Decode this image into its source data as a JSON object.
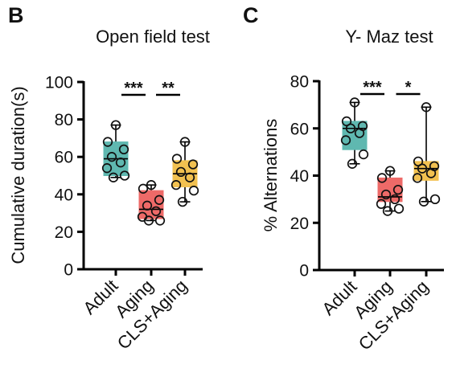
{
  "chart_data": [
    {
      "panel_label": "B",
      "type": "box",
      "title": "Open field test",
      "xlabel": "",
      "ylabel": "Cumulative duration(s)",
      "ylim": [
        0,
        100
      ],
      "yticks": [
        0,
        20,
        40,
        60,
        80,
        100
      ],
      "categories": [
        "Adult",
        "Aging",
        "CLS+Aging"
      ],
      "colors": [
        "#5fb8b0",
        "#ee6a68",
        "#f2c150"
      ],
      "boxes": [
        {
          "min": 49,
          "q1": 50,
          "median": 59,
          "q3": 68,
          "max": 77
        },
        {
          "min": 26,
          "q1": 27,
          "median": 32,
          "q3": 42,
          "max": 45
        },
        {
          "min": 36,
          "q1": 44,
          "median": 51,
          "q3": 58,
          "max": 68
        }
      ],
      "points": [
        [
          77,
          68,
          64,
          60,
          57,
          54,
          50,
          49
        ],
        [
          45,
          43,
          37,
          34,
          31,
          28,
          26,
          26
        ],
        [
          68,
          59,
          56,
          52,
          49,
          45,
          42,
          36
        ]
      ],
      "significance": [
        {
          "from": "Adult",
          "to": "Aging",
          "label": "***"
        },
        {
          "from": "Aging",
          "to": "CLS+Aging",
          "label": "**"
        }
      ]
    },
    {
      "panel_label": "C",
      "type": "box",
      "title": "Y- Maz test",
      "xlabel": "",
      "ylabel": "% Alternations",
      "ylim": [
        0,
        80
      ],
      "yticks": [
        0,
        20,
        40,
        60,
        80
      ],
      "categories": [
        "Adult",
        "Aging",
        "CLS+Aging"
      ],
      "colors": [
        "#5fb8b0",
        "#ee6a68",
        "#f2c150"
      ],
      "boxes": [
        {
          "min": 45,
          "q1": 51,
          "median": 60,
          "q3": 63,
          "max": 71
        },
        {
          "min": 25,
          "q1": 29,
          "median": 31,
          "q3": 39,
          "max": 42
        },
        {
          "min": 29,
          "q1": 38,
          "median": 43,
          "q3": 46,
          "max": 69
        }
      ],
      "points": [
        [
          71,
          63,
          61,
          60,
          58,
          55,
          49,
          45
        ],
        [
          42,
          39,
          34,
          32,
          30,
          28,
          26,
          25
        ],
        [
          69,
          46,
          44,
          43,
          41,
          39,
          30,
          29
        ]
      ],
      "significance": [
        {
          "from": "Adult",
          "to": "Aging",
          "label": "***"
        },
        {
          "from": "Aging",
          "to": "CLS+Aging",
          "label": "*"
        }
      ]
    }
  ]
}
